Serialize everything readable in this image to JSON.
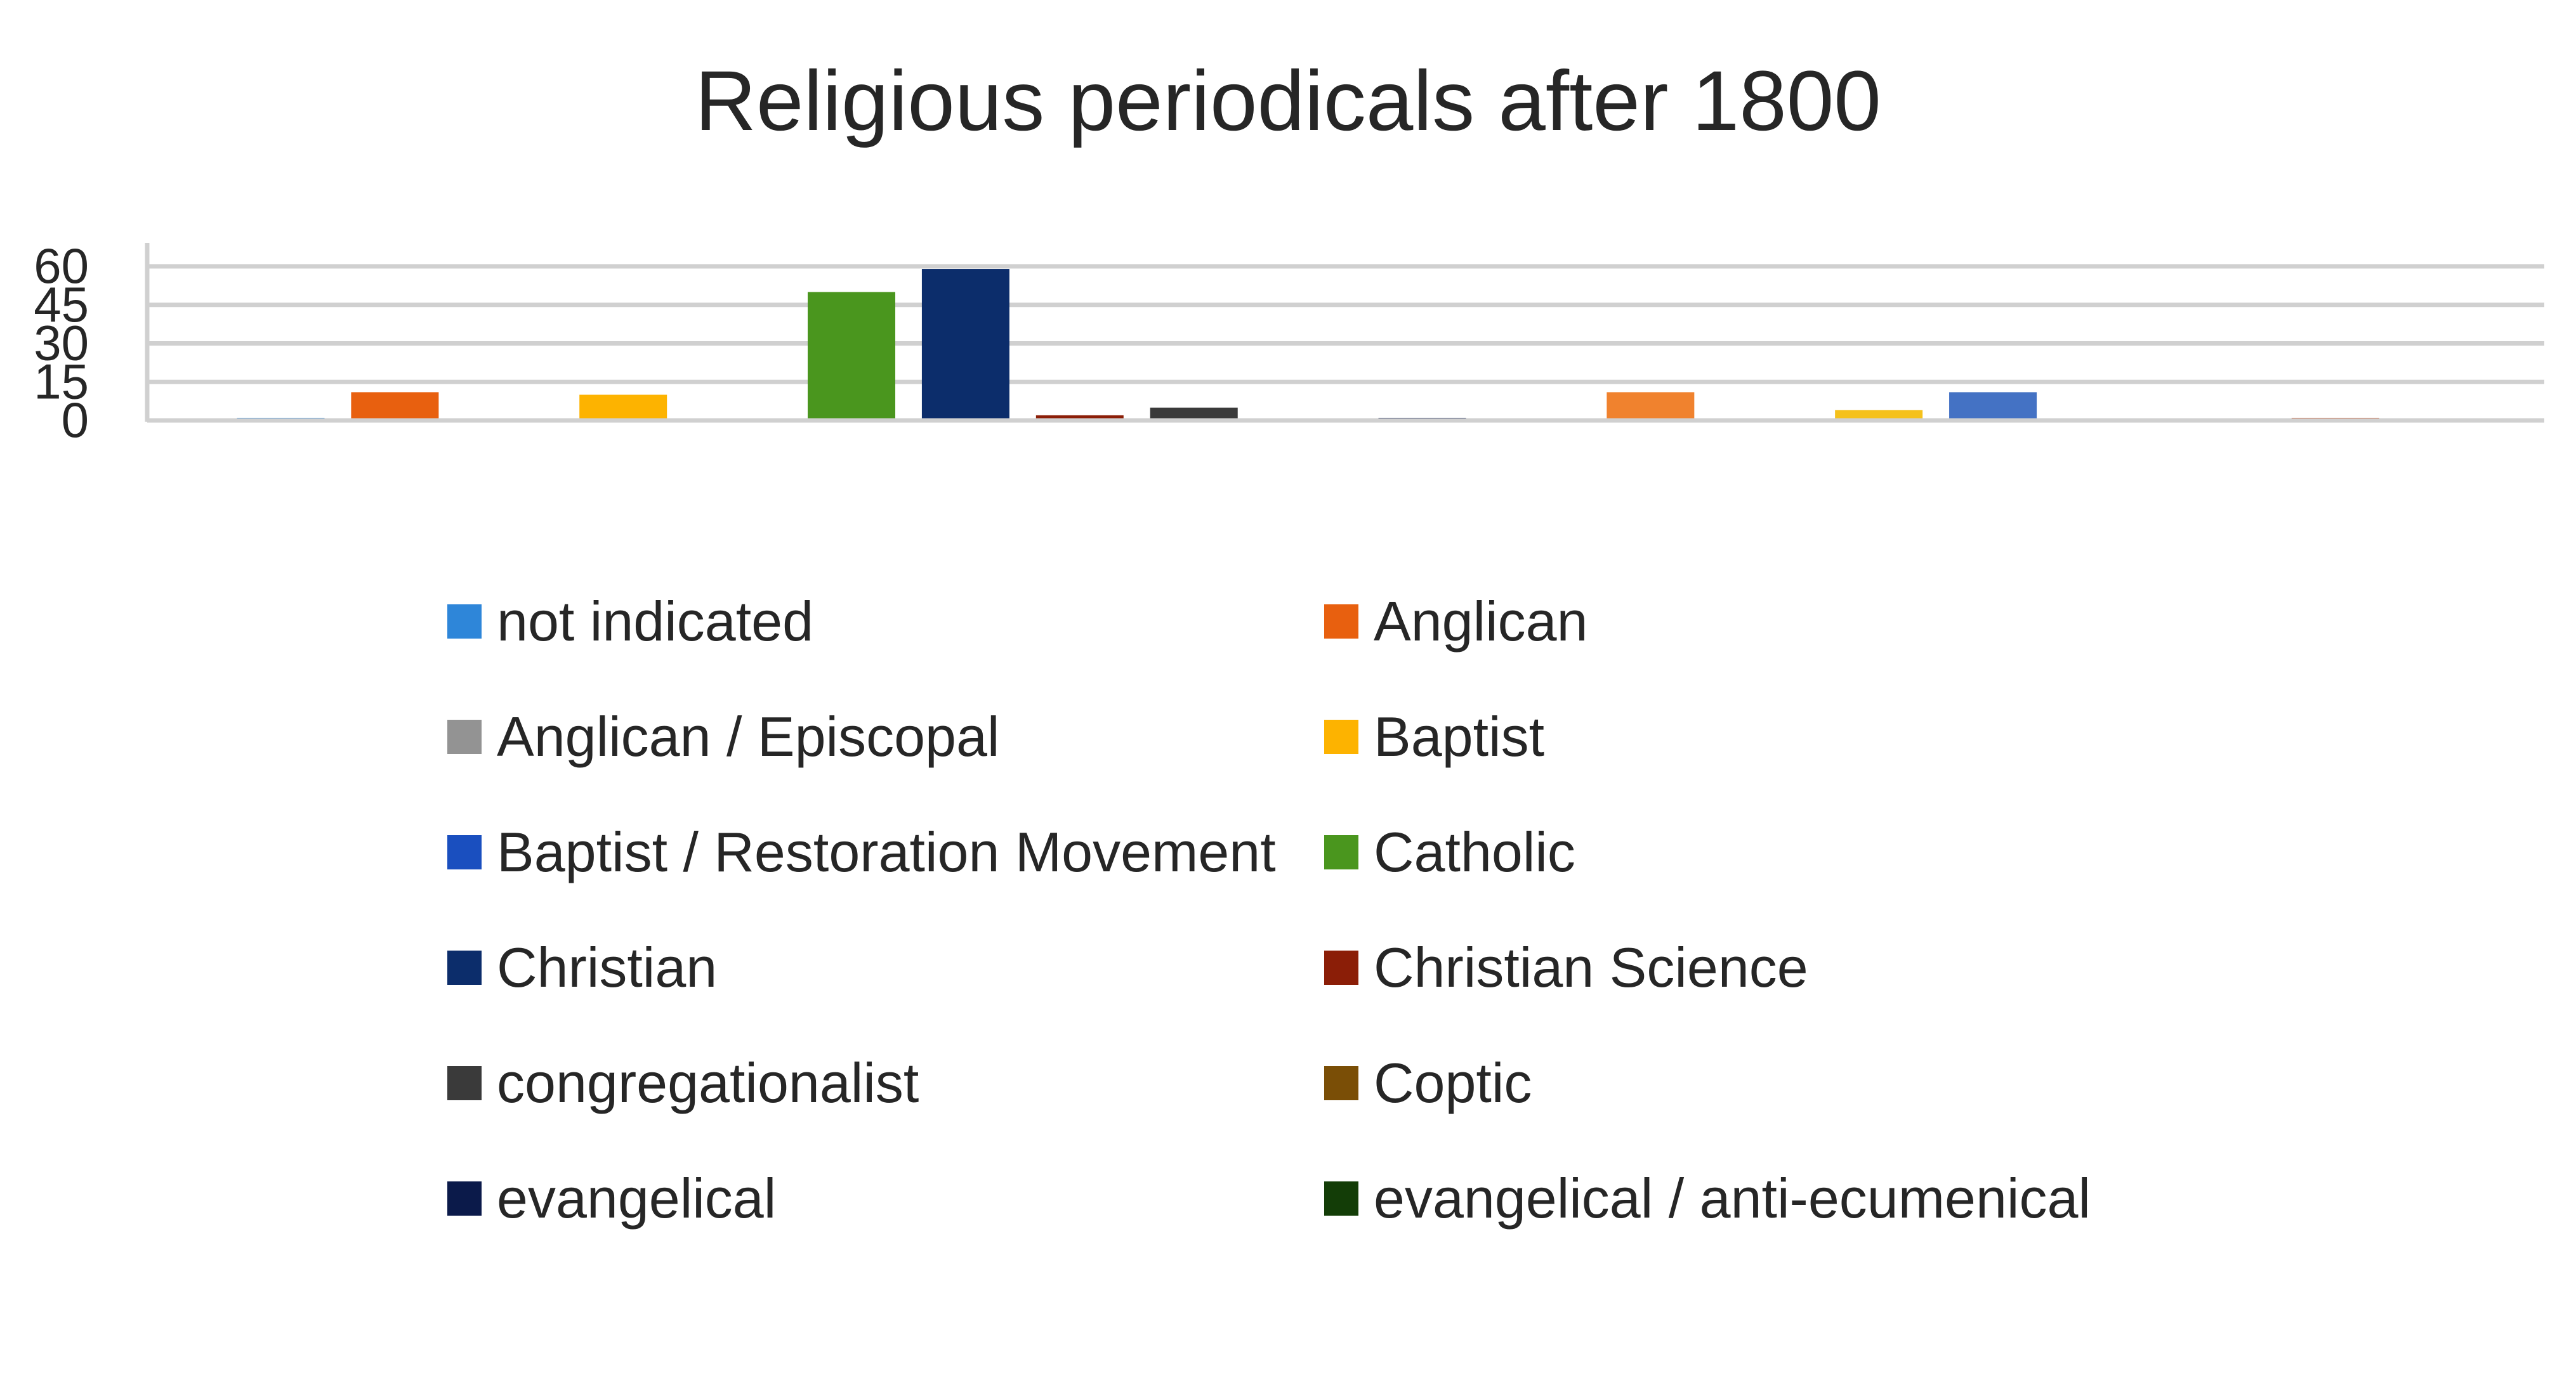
{
  "chart_data": {
    "type": "bar",
    "title": "Religious periodicals after 1800",
    "xlabel": "",
    "ylabel": "",
    "ylim": [
      0,
      60
    ],
    "yticks": [
      0,
      15,
      30,
      45,
      60
    ],
    "grid": true,
    "legend_position": "bottom",
    "series": [
      {
        "name": "not indicated",
        "color": "#2E86D9",
        "value": 1
      },
      {
        "name": "Anglican",
        "color": "#E8600F",
        "value": 11
      },
      {
        "name": "Anglican / Episcopal",
        "color": "#939393",
        "value": 0
      },
      {
        "name": "Baptist",
        "color": "#FDB300",
        "value": 10
      },
      {
        "name": "Baptist / Restoration Movement",
        "color": "#1A4FBF",
        "value": 0
      },
      {
        "name": "Catholic",
        "color": "#4A961E",
        "value": 50
      },
      {
        "name": "Christian",
        "color": "#0C2D6B",
        "value": 59
      },
      {
        "name": "Christian Science",
        "color": "#8B1E07",
        "value": 2
      },
      {
        "name": "congregationalist",
        "color": "#3A3A3A",
        "value": 5
      },
      {
        "name": "Coptic",
        "color": "#7A4E06",
        "value": 0
      },
      {
        "name": "evangelical",
        "color": "#0B1A4A",
        "value": 1
      },
      {
        "name": "evangelical / anti-ecumenical",
        "color": "#133D07",
        "value": 0
      },
      {
        "name": "",
        "color": "#F0822E",
        "value": 11
      },
      {
        "name": "",
        "color": "#A6A6A6",
        "value": 0
      },
      {
        "name": "",
        "color": "#F5C11B",
        "value": 4
      },
      {
        "name": "",
        "color": "#4472C4",
        "value": 11
      },
      {
        "name": "",
        "color": "#70AD47",
        "value": 0
      },
      {
        "name": "",
        "color": "#264478",
        "value": 0
      },
      {
        "name": "",
        "color": "#C5461A",
        "value": 1
      }
    ]
  }
}
